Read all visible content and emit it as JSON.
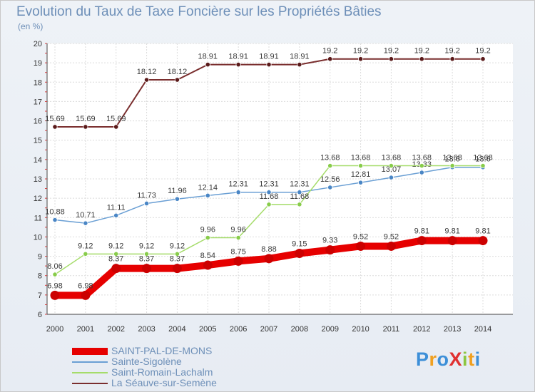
{
  "title": "Evolution du Taux de Taxe Foncière sur les Propriétés Bâties",
  "unit_label": "(en %)",
  "logo": {
    "text": "ProXiti",
    "letter_colors": [
      "#3d8fd8",
      "#f0a020",
      "#3d8fd8",
      "#e03030",
      "#8cc63f",
      "#f0a020",
      "#3d8fd8"
    ]
  },
  "chart_data": {
    "type": "line",
    "title": "Evolution du Taux de Taxe Foncière sur les Propriétés Bâties",
    "ylabel": "(en %)",
    "xlabel": "",
    "ylim": [
      6,
      20
    ],
    "y_ticks": [
      6,
      7,
      8,
      9,
      10,
      11,
      12,
      13,
      14,
      15,
      16,
      17,
      18,
      19,
      20
    ],
    "grid": true,
    "legend_position": "bottom-left",
    "x": [
      "2000",
      "2001",
      "2002",
      "2003",
      "2004",
      "2005",
      "2006",
      "2007",
      "2008",
      "2009",
      "2010",
      "2011",
      "2012",
      "2013",
      "2014"
    ],
    "series": [
      {
        "name": "La Séauve-sur-Semène",
        "color": "#7a2e2e",
        "marker": "#5a1a1a",
        "width": 2,
        "values": [
          15.69,
          15.69,
          15.69,
          18.12,
          18.12,
          18.91,
          18.91,
          18.91,
          18.91,
          19.2,
          19.2,
          19.2,
          19.2,
          19.2,
          19.2
        ],
        "labels": [
          "15.69",
          "15.69",
          "15.69",
          "18.12",
          "18.12",
          "18.91",
          "18.91",
          "18.91",
          "18.91",
          "19.2",
          "19.2",
          "19.2",
          "19.2",
          "19.2",
          "19.2"
        ]
      },
      {
        "name": "Sainte-Sigolène",
        "color": "#6a9fd4",
        "marker": "#4a86c5",
        "width": 1.5,
        "values": [
          10.88,
          10.71,
          11.11,
          11.73,
          11.96,
          12.14,
          12.31,
          12.31,
          12.31,
          12.56,
          12.81,
          13.07,
          13.33,
          13.6,
          13.6
        ],
        "labels": [
          "10.88",
          "10.71",
          "11.11",
          "11.73",
          "11.96",
          "12.14",
          "12.31",
          "12.31",
          "12.31",
          "12.56",
          "12.81",
          "13.07",
          "13.33",
          "13.6",
          "13.6"
        ]
      },
      {
        "name": "Saint-Romain-Lachalm",
        "color": "#a5dc6a",
        "marker": "#88cc4a",
        "width": 1.5,
        "values": [
          8.06,
          9.12,
          9.12,
          9.12,
          9.12,
          9.96,
          9.96,
          11.68,
          11.68,
          13.68,
          13.68,
          13.68,
          13.68,
          13.68,
          13.68
        ],
        "labels": [
          "8.06",
          "9.12",
          "9.12",
          "9.12",
          "9.12",
          "9.96",
          "9.96",
          "11.68",
          "11.68",
          "13.68",
          "13.68",
          "13.68",
          "13.68",
          "13.68",
          "13.68"
        ]
      },
      {
        "name": "SAINT-PAL-DE-MONS",
        "color": "#e60000",
        "marker": "#cc0000",
        "width": 10,
        "values": [
          6.98,
          6.98,
          8.37,
          8.37,
          8.37,
          8.54,
          8.75,
          8.88,
          9.15,
          9.33,
          9.52,
          9.52,
          9.81,
          9.81,
          9.81
        ],
        "labels": [
          "6.98",
          "6.98",
          "8.37",
          "8.37",
          "8.37",
          "8.54",
          "8.75",
          "8.88",
          "9.15",
          "9.33",
          "9.52",
          "9.52",
          "9.81",
          "9.81",
          "9.81"
        ]
      }
    ],
    "legend_order": [
      "SAINT-PAL-DE-MONS",
      "Sainte-Sigolène",
      "Saint-Romain-Lachalm",
      "La Séauve-sur-Semène"
    ]
  }
}
